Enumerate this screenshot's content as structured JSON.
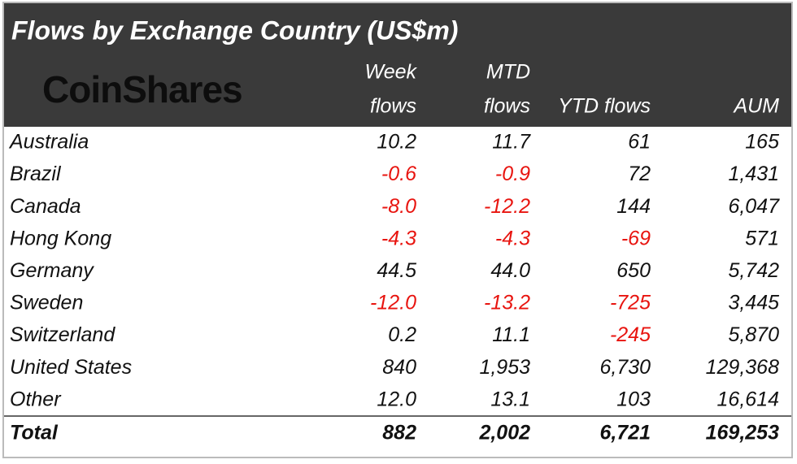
{
  "header": {
    "title": "Flows by Exchange Country (US$m)",
    "logo": "CoinShares",
    "columns": [
      [
        "Week",
        "flows"
      ],
      [
        "MTD",
        "flows"
      ],
      [
        "YTD flows"
      ],
      [
        "AUM"
      ]
    ]
  },
  "table": {
    "rows": [
      [
        "Australia",
        "10.2",
        "11.7",
        "61",
        "165"
      ],
      [
        "Brazil",
        "-0.6",
        "-0.9",
        "72",
        "1,431"
      ],
      [
        "Canada",
        "-8.0",
        "-12.2",
        "144",
        "6,047"
      ],
      [
        "Hong Kong",
        "-4.3",
        "-4.3",
        "-69",
        "571"
      ],
      [
        "Germany",
        "44.5",
        "44.0",
        "650",
        "5,742"
      ],
      [
        "Sweden",
        "-12.0",
        "-13.2",
        "-725",
        "3,445"
      ],
      [
        "Switzerland",
        "0.2",
        "11.1",
        "-245",
        "5,870"
      ],
      [
        "United States",
        "840",
        "1,953",
        "6,730",
        "129,368"
      ],
      [
        "Other",
        "12.0",
        "13.1",
        "103",
        "16,614"
      ]
    ],
    "total": [
      "Total",
      "882",
      "2,002",
      "6,721",
      "169,253"
    ]
  }
}
